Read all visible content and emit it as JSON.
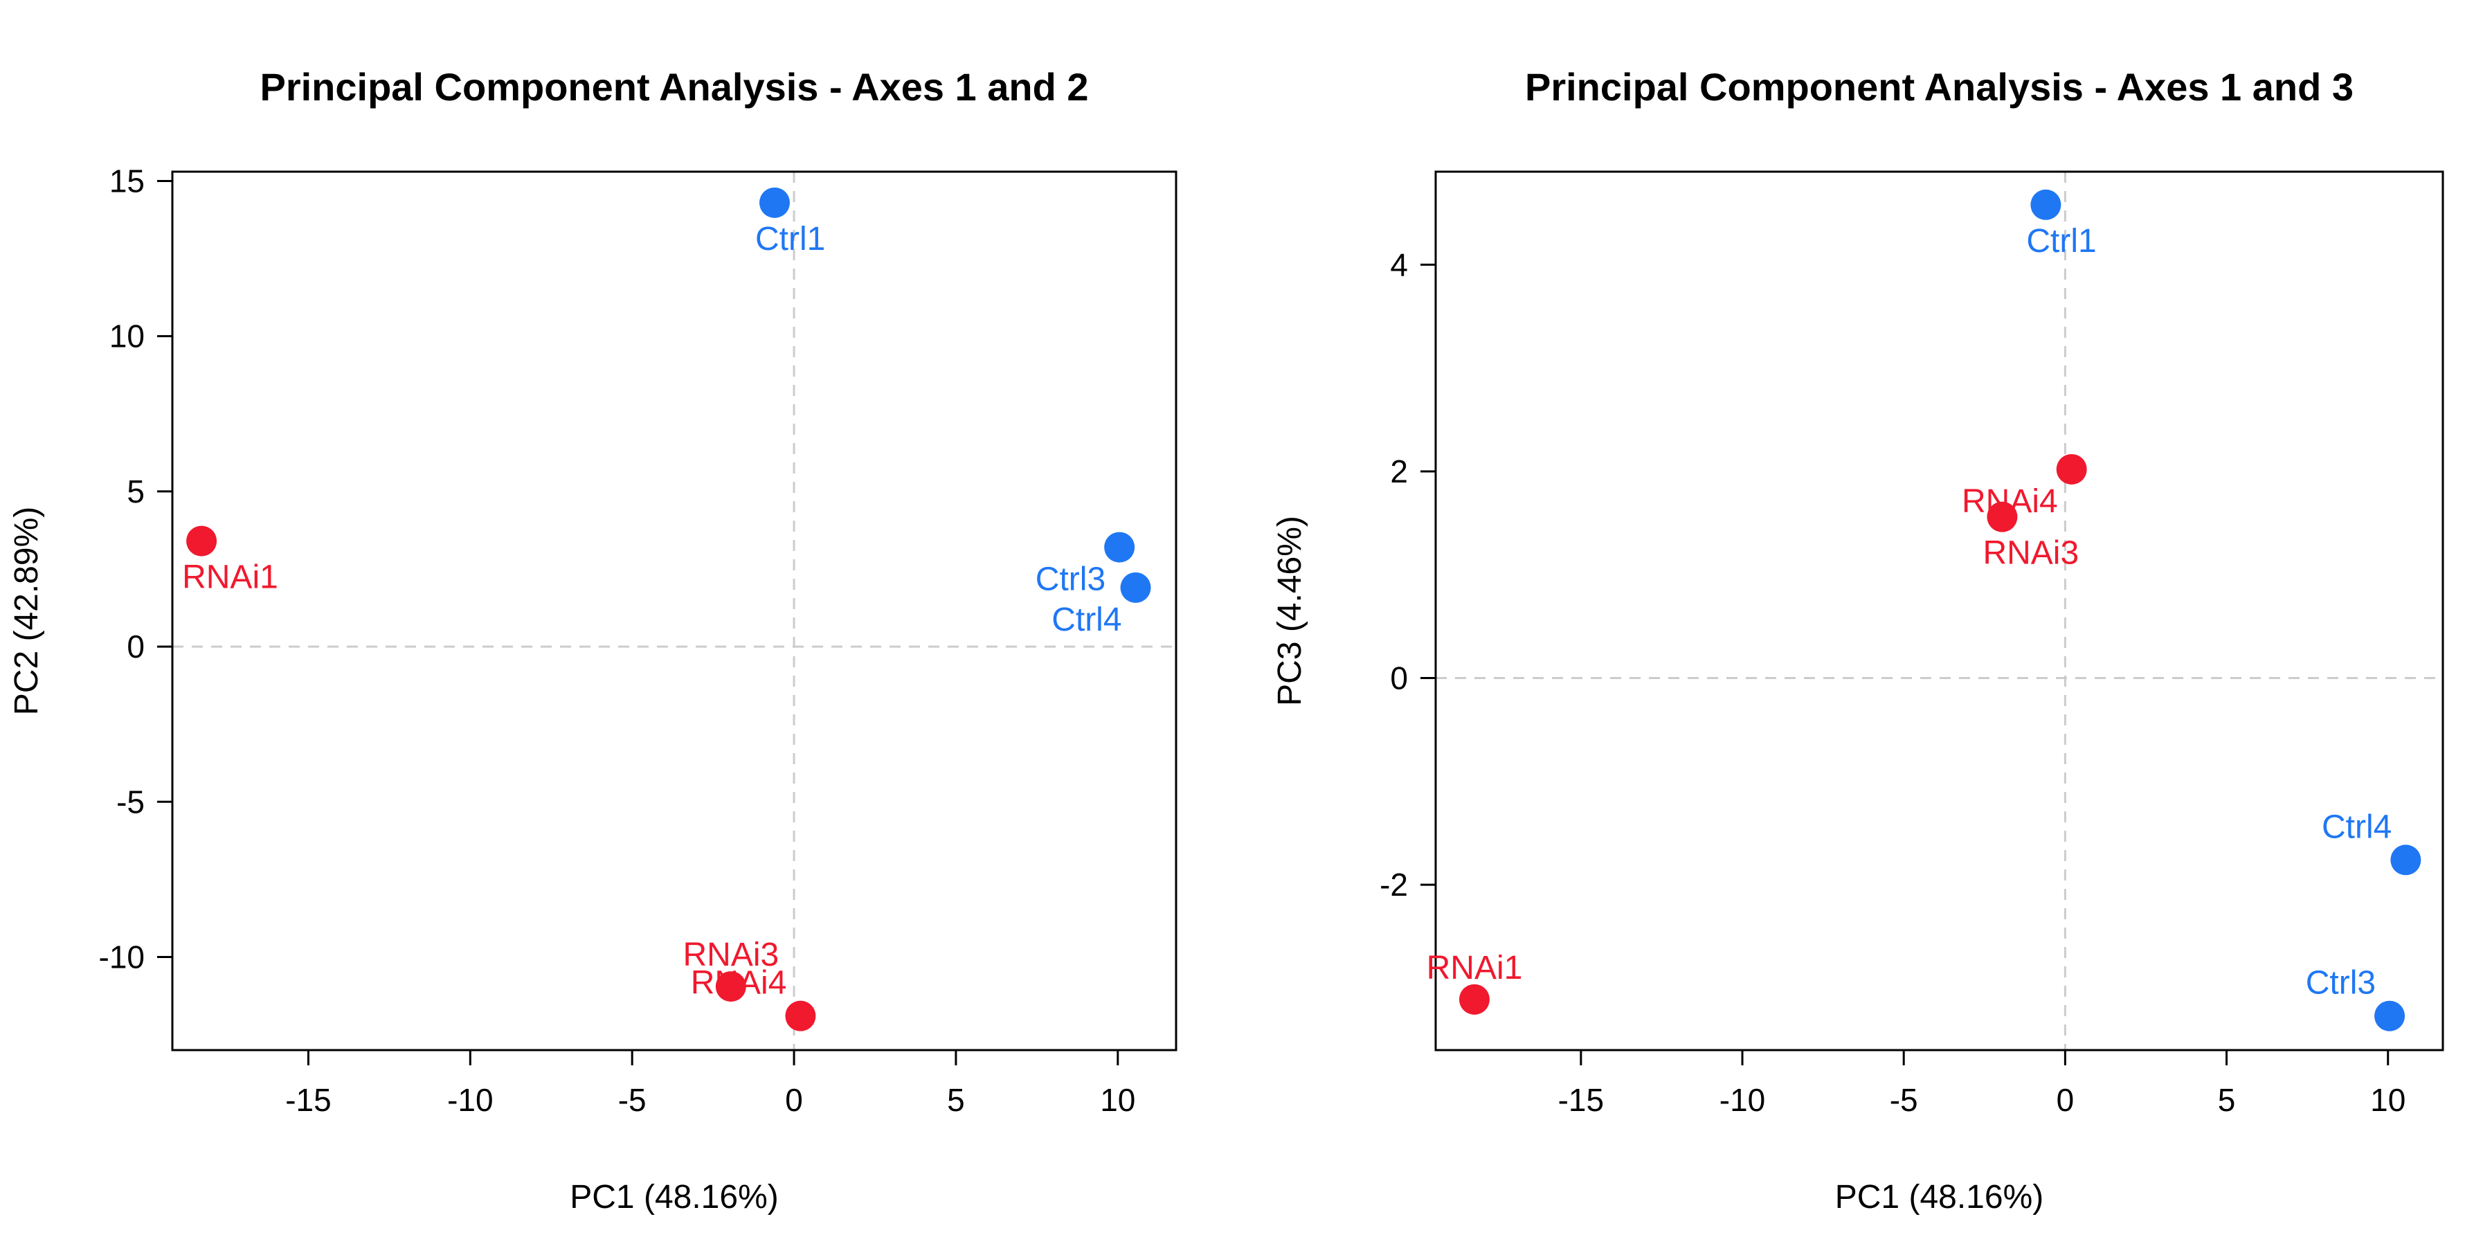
{
  "chart_data": [
    {
      "type": "scatter",
      "title": "Principal Component Analysis - Axes 1 and 2",
      "xlabel": "PC1 (48.16%)",
      "ylabel": "PC2 (42.89%)",
      "xlim": [
        -19.2,
        11.8
      ],
      "ylim": [
        -13.0,
        15.3
      ],
      "xticks": [
        -15,
        -10,
        -5,
        0,
        5,
        10
      ],
      "yticks": [
        -10,
        -5,
        0,
        5,
        10,
        15
      ],
      "reference_lines": {
        "x": 0,
        "y": 0,
        "style": "dashed",
        "color": "#cccccc"
      },
      "legend": "none",
      "points": [
        {
          "label": "Ctrl1",
          "x": -0.6,
          "y": 14.3,
          "group": "Ctrl",
          "label_pos": "below"
        },
        {
          "label": "Ctrl3",
          "x": 10.05,
          "y": 3.2,
          "group": "Ctrl",
          "label_pos": "below-left"
        },
        {
          "label": "Ctrl4",
          "x": 10.55,
          "y": 1.9,
          "group": "Ctrl",
          "label_pos": "below-left"
        },
        {
          "label": "RNAi1",
          "x": -18.3,
          "y": 3.4,
          "group": "RNAi",
          "label_pos": "below"
        },
        {
          "label": "RNAi3",
          "x": -1.95,
          "y": -10.95,
          "group": "RNAi",
          "label_pos": "above"
        },
        {
          "label": "RNAi4",
          "x": 0.2,
          "y": -11.9,
          "group": "RNAi",
          "label_pos": "above-left"
        }
      ],
      "colors": {
        "Ctrl": "#1f77f4",
        "RNAi": "#f0192e"
      }
    },
    {
      "type": "scatter",
      "title": "Principal Component Analysis - Axes 1 and 3",
      "xlabel": "PC1 (48.16%)",
      "ylabel": "PC3 (4.46%)",
      "xlim": [
        -19.5,
        11.7
      ],
      "ylim": [
        -3.6,
        4.9
      ],
      "xticks": [
        -15,
        -10,
        -5,
        0,
        5,
        10
      ],
      "yticks": [
        -2,
        0,
        2,
        4
      ],
      "reference_lines": {
        "x": 0,
        "y": 0,
        "style": "dashed",
        "color": "#cccccc"
      },
      "legend": "none",
      "points": [
        {
          "label": "Ctrl1",
          "x": -0.6,
          "y": 4.58,
          "group": "Ctrl",
          "label_pos": "below"
        },
        {
          "label": "Ctrl3",
          "x": 10.05,
          "y": -3.27,
          "group": "Ctrl",
          "label_pos": "above-left"
        },
        {
          "label": "Ctrl4",
          "x": 10.55,
          "y": -1.76,
          "group": "Ctrl",
          "label_pos": "above-left"
        },
        {
          "label": "RNAi1",
          "x": -18.3,
          "y": -3.11,
          "group": "RNAi",
          "label_pos": "above"
        },
        {
          "label": "RNAi3",
          "x": -1.95,
          "y": 1.56,
          "group": "RNAi",
          "label_pos": "below"
        },
        {
          "label": "RNAi4",
          "x": 0.2,
          "y": 2.02,
          "group": "RNAi",
          "label_pos": "below-left"
        }
      ],
      "colors": {
        "Ctrl": "#1f77f4",
        "RNAi": "#f0192e"
      }
    }
  ]
}
